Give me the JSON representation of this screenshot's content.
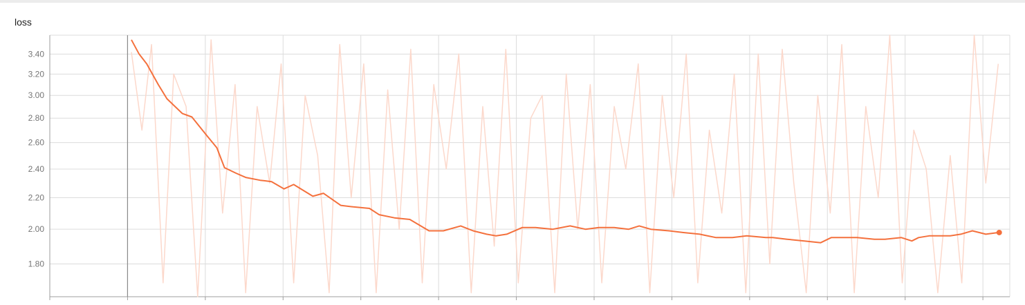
{
  "panel": {
    "title": "loss"
  },
  "colors": {
    "smoothed": "#f4703c",
    "raw": "#fcd8cb",
    "grid": "#dcdcdc",
    "axis": "#9e9e9e"
  },
  "chart_data": {
    "type": "line",
    "title": "loss",
    "xlabel": "",
    "ylabel": "",
    "log_scale_y": true,
    "ylim": [
      1.63,
      3.6
    ],
    "xlim": [
      0,
      100
    ],
    "yticks": [
      1.8,
      2.0,
      2.2,
      2.4,
      2.6,
      2.8,
      3.0,
      3.2,
      3.4
    ],
    "ytick_labels": [
      "1.80",
      "2.00",
      "2.20",
      "2.40",
      "2.60",
      "2.80",
      "3.00",
      "3.20",
      "3.40"
    ],
    "xticks": [
      0,
      8.1,
      16.2,
      24.3,
      32.4,
      40.5,
      48.6,
      56.7,
      64.8,
      72.9,
      81.0,
      89.1,
      97.2
    ],
    "xtick_labels": [],
    "grid": true,
    "series": [
      {
        "style": "smoothed",
        "x": [
          8.5,
          9.3,
          10.1,
          11.3,
          12.2,
          13.8,
          14.8,
          15.9,
          16.2,
          17.4,
          18.2,
          19.4,
          20.4,
          21.9,
          23.1,
          24.4,
          25.4,
          27.4,
          28.5,
          30.3,
          31.6,
          33.3,
          34.3,
          35.9,
          37.5,
          39.5,
          41.0,
          42.8,
          44.1,
          45.5,
          46.5,
          47.6,
          49.2,
          50.6,
          52.4,
          54.2,
          55.8,
          57.2,
          58.8,
          60.3,
          61.4,
          62.6,
          64.5,
          66.0,
          67.7,
          69.4,
          71.1,
          72.6,
          74.6,
          75.3,
          76.8,
          78.6,
          80.3,
          81.4,
          82.9,
          84.1,
          85.9,
          87.0,
          88.7,
          89.8,
          90.5,
          91.6,
          92.9,
          93.8,
          94.9,
          96.1,
          97.5,
          98.8
        ],
        "y": [
          3.55,
          3.4,
          3.3,
          3.1,
          2.97,
          2.84,
          2.81,
          2.7,
          2.67,
          2.56,
          2.41,
          2.37,
          2.34,
          2.32,
          2.31,
          2.26,
          2.29,
          2.21,
          2.23,
          2.15,
          2.14,
          2.13,
          2.09,
          2.07,
          2.06,
          1.99,
          1.99,
          2.02,
          1.99,
          1.97,
          1.96,
          1.97,
          2.01,
          2.01,
          2.0,
          2.02,
          2.0,
          2.01,
          2.01,
          2.0,
          2.02,
          2.0,
          1.99,
          1.98,
          1.97,
          1.95,
          1.95,
          1.96,
          1.95,
          1.95,
          1.94,
          1.93,
          1.92,
          1.95,
          1.95,
          1.95,
          1.94,
          1.94,
          1.95,
          1.93,
          1.95,
          1.96,
          1.96,
          1.96,
          1.97,
          1.99,
          1.97,
          1.98
        ]
      },
      {
        "style": "raw",
        "x": [
          8.5,
          9.6,
          10.6,
          11.8,
          12.9,
          14.2,
          15.4,
          16.8,
          18.0,
          19.3,
          20.4,
          21.6,
          22.9,
          24.1,
          25.4,
          26.6,
          27.9,
          29.1,
          30.2,
          31.4,
          32.7,
          34.0,
          35.2,
          36.4,
          37.6,
          38.8,
          40.0,
          41.3,
          42.6,
          43.9,
          45.1,
          46.3,
          47.5,
          48.8,
          50.1,
          51.3,
          52.6,
          53.8,
          55.0,
          56.3,
          57.5,
          58.8,
          60.0,
          61.3,
          62.5,
          63.8,
          65.0,
          66.3,
          67.5,
          68.7,
          70.0,
          71.3,
          72.5,
          73.8,
          75.0,
          76.3,
          77.5,
          78.8,
          80.0,
          81.3,
          82.5,
          83.8,
          85.0,
          86.3,
          87.5,
          88.8,
          90.0,
          91.3,
          92.5,
          93.8,
          95.0,
          96.3,
          97.5,
          98.8
        ],
        "y": [
          3.42,
          2.7,
          3.5,
          1.7,
          3.2,
          2.9,
          1.6,
          3.55,
          2.1,
          3.1,
          1.65,
          2.9,
          2.3,
          3.3,
          1.7,
          3.0,
          2.5,
          1.65,
          3.5,
          2.2,
          3.3,
          1.65,
          3.05,
          2.0,
          3.45,
          1.7,
          3.1,
          2.4,
          3.4,
          1.65,
          2.9,
          1.9,
          3.45,
          1.7,
          2.8,
          3.0,
          1.65,
          3.2,
          2.0,
          3.1,
          1.7,
          2.9,
          2.4,
          3.3,
          1.65,
          3.0,
          2.2,
          3.4,
          1.7,
          2.7,
          2.1,
          3.2,
          1.65,
          3.4,
          1.8,
          3.45,
          2.3,
          1.65,
          3.0,
          2.1,
          3.5,
          1.65,
          2.9,
          2.2,
          3.6,
          1.7,
          2.7,
          2.4,
          1.65,
          2.5,
          1.7,
          3.6,
          2.3,
          3.3
        ]
      }
    ],
    "last_point": {
      "x": 98.9,
      "y": 1.98
    }
  }
}
